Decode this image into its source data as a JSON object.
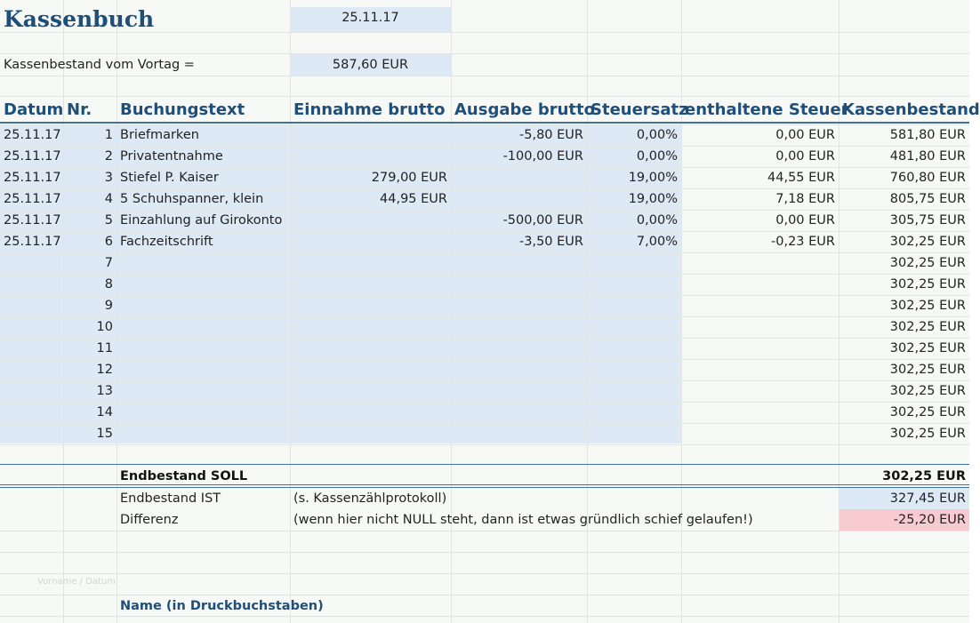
{
  "title": "Kassenbuch",
  "date": "25.11.17",
  "opening_label": "Kassenbestand vom Vortag =",
  "opening_value": "587,60 EUR",
  "headers": [
    "Datum",
    "Nr.",
    "Buchungstext",
    "Einnahme brutto",
    "Ausgabe brutto",
    "Steuersatz",
    "enthaltene Steuer",
    "Kassenbestand"
  ],
  "rows": [
    {
      "date": "25.11.17",
      "nr": "1",
      "text": "Briefmarken",
      "income": "",
      "expense": "-5,80 EUR",
      "rate": "0,00%",
      "tax": "0,00 EUR",
      "balance": "581,80 EUR"
    },
    {
      "date": "25.11.17",
      "nr": "2",
      "text": "Privatentnahme",
      "income": "",
      "expense": "-100,00 EUR",
      "rate": "0,00%",
      "tax": "0,00 EUR",
      "balance": "481,80 EUR"
    },
    {
      "date": "25.11.17",
      "nr": "3",
      "text": "Stiefel P. Kaiser",
      "income": "279,00 EUR",
      "expense": "",
      "rate": "19,00%",
      "tax": "44,55 EUR",
      "balance": "760,80 EUR"
    },
    {
      "date": "25.11.17",
      "nr": "4",
      "text": "5 Schuhspanner, klein",
      "income": "44,95 EUR",
      "expense": "",
      "rate": "19,00%",
      "tax": "7,18 EUR",
      "balance": "805,75 EUR"
    },
    {
      "date": "25.11.17",
      "nr": "5",
      "text": "Einzahlung auf Girokonto",
      "income": "",
      "expense": "-500,00 EUR",
      "rate": "0,00%",
      "tax": "0,00 EUR",
      "balance": "305,75 EUR"
    },
    {
      "date": "25.11.17",
      "nr": "6",
      "text": "Fachzeitschrift",
      "income": "",
      "expense": "-3,50 EUR",
      "rate": "7,00%",
      "tax": "-0,23 EUR",
      "balance": "302,25 EUR"
    },
    {
      "date": "",
      "nr": "7",
      "text": "",
      "income": "",
      "expense": "",
      "rate": "",
      "tax": "",
      "balance": "302,25 EUR"
    },
    {
      "date": "",
      "nr": "8",
      "text": "",
      "income": "",
      "expense": "",
      "rate": "",
      "tax": "",
      "balance": "302,25 EUR"
    },
    {
      "date": "",
      "nr": "9",
      "text": "",
      "income": "",
      "expense": "",
      "rate": "",
      "tax": "",
      "balance": "302,25 EUR"
    },
    {
      "date": "",
      "nr": "10",
      "text": "",
      "income": "",
      "expense": "",
      "rate": "",
      "tax": "",
      "balance": "302,25 EUR"
    },
    {
      "date": "",
      "nr": "11",
      "text": "",
      "income": "",
      "expense": "",
      "rate": "",
      "tax": "",
      "balance": "302,25 EUR"
    },
    {
      "date": "",
      "nr": "12",
      "text": "",
      "income": "",
      "expense": "",
      "rate": "",
      "tax": "",
      "balance": "302,25 EUR"
    },
    {
      "date": "",
      "nr": "13",
      "text": "",
      "income": "",
      "expense": "",
      "rate": "",
      "tax": "",
      "balance": "302,25 EUR"
    },
    {
      "date": "",
      "nr": "14",
      "text": "",
      "income": "",
      "expense": "",
      "rate": "",
      "tax": "",
      "balance": "302,25 EUR"
    },
    {
      "date": "",
      "nr": "15",
      "text": "",
      "income": "",
      "expense": "",
      "rate": "",
      "tax": "",
      "balance": "302,25 EUR"
    }
  ],
  "end_soll_label": "Endbestand SOLL",
  "end_soll_value": "302,25 EUR",
  "end_ist_label": "Endbestand IST",
  "end_ist_note": "(s. Kassenzählprotokoll)",
  "end_ist_value": "327,45 EUR",
  "diff_label": "Differenz",
  "diff_note": "(wenn hier nicht NULL steht, dann ist etwas gründlich schief gelaufen!)",
  "diff_value": "-25,20 EUR",
  "faint_label": "Vorname / Datum",
  "name_label": "Name (in Druckbuchstaben)",
  "colors": {
    "frame": "#2e8b1e",
    "accent": "#1f4e79",
    "input_fill": "#dde9f5",
    "diff_fill": "#f8cbd0"
  }
}
